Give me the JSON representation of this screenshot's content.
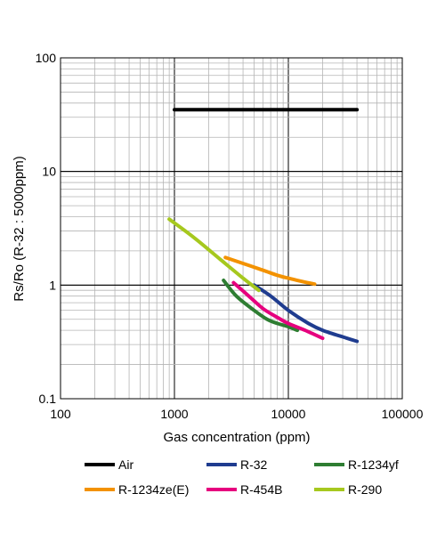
{
  "chart_data": {
    "type": "line",
    "x_scale": "log",
    "y_scale": "log",
    "xlabel": "Gas concentration (ppm)",
    "ylabel": "Rs/Ro (R-32 : 5000ppm)",
    "xlim": [
      100,
      100000
    ],
    "ylim": [
      0.1,
      100
    ],
    "x_ticks": [
      "100",
      "1000",
      "10000",
      "100000"
    ],
    "y_ticks": [
      "0.1",
      "1",
      "10",
      "100"
    ],
    "grid": true,
    "legend_position": "bottom",
    "series": [
      {
        "name": "Air",
        "color": "#000000",
        "x": [
          1000,
          40000
        ],
        "y": [
          35,
          35
        ]
      },
      {
        "name": "R-32",
        "color": "#1f3c8f",
        "x": [
          5000,
          7000,
          10000,
          15000,
          20000,
          30000,
          40000
        ],
        "y": [
          1.0,
          0.8,
          0.6,
          0.46,
          0.4,
          0.35,
          0.32
        ]
      },
      {
        "name": "R-1234yf",
        "color": "#2e7d32",
        "x": [
          2700,
          3500,
          5000,
          6500,
          8000,
          10000,
          12000
        ],
        "y": [
          1.1,
          0.8,
          0.6,
          0.5,
          0.46,
          0.43,
          0.4
        ]
      },
      {
        "name": "R-1234ze(E)",
        "color": "#f39200",
        "x": [
          2800,
          4000,
          6000,
          8000,
          10000,
          13000,
          17000
        ],
        "y": [
          1.75,
          1.55,
          1.35,
          1.22,
          1.15,
          1.08,
          1.02
        ]
      },
      {
        "name": "R-454B",
        "color": "#e6007e",
        "x": [
          3300,
          4500,
          6000,
          8000,
          10000,
          14000,
          20000
        ],
        "y": [
          1.05,
          0.8,
          0.62,
          0.52,
          0.46,
          0.4,
          0.34
        ]
      },
      {
        "name": "R-290",
        "color": "#a6c81e",
        "x": [
          900,
          1500,
          2500,
          4000,
          5500
        ],
        "y": [
          3.8,
          2.6,
          1.7,
          1.15,
          0.9
        ]
      }
    ]
  },
  "legend": {
    "items": [
      {
        "name": "Air",
        "color": "#000000"
      },
      {
        "name": "R-32",
        "color": "#1f3c8f"
      },
      {
        "name": "R-1234yf",
        "color": "#2e7d32"
      },
      {
        "name": "R-1234ze(E)",
        "color": "#f39200"
      },
      {
        "name": "R-454B",
        "color": "#e6007e"
      },
      {
        "name": "R-290",
        "color": "#a6c81e"
      }
    ]
  }
}
